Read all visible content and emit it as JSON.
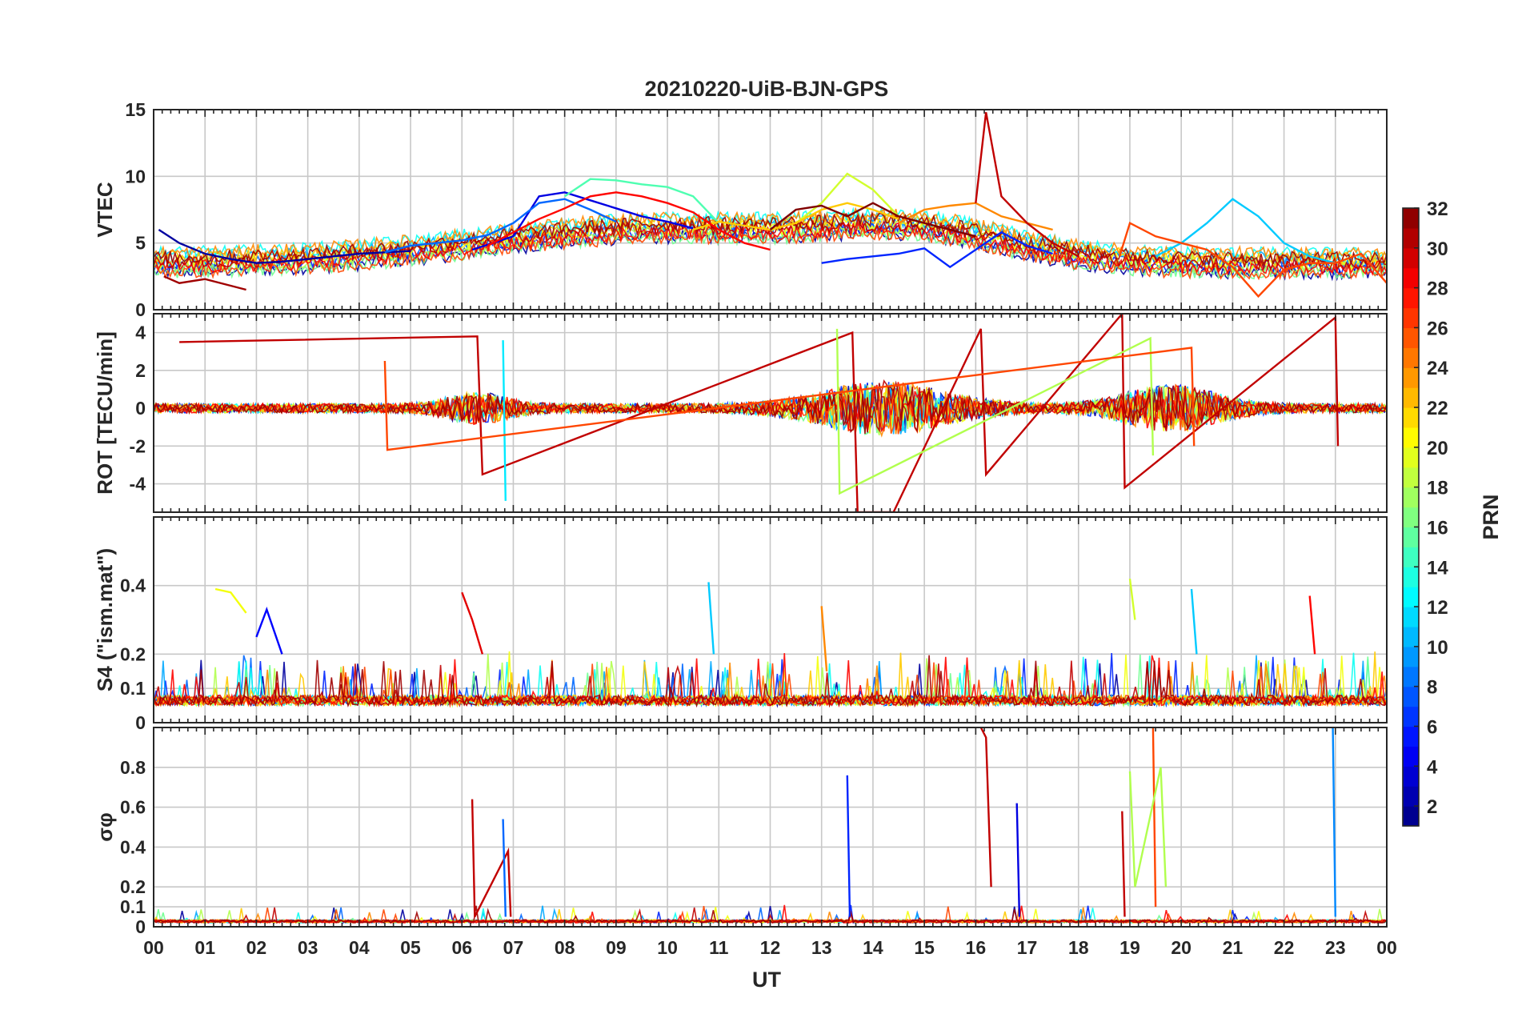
{
  "figure": {
    "title": "20210220-UiB-BJN-GPS",
    "xlabel": "UT"
  },
  "chart_data": {
    "type": "line",
    "title": "20210220-UiB-BJN-GPS",
    "xlabel": "UT",
    "x_unit": "hour",
    "xlim": [
      0,
      24
    ],
    "x_ticks": [
      0,
      1,
      2,
      3,
      4,
      5,
      6,
      7,
      8,
      9,
      10,
      11,
      12,
      13,
      14,
      15,
      16,
      17,
      18,
      19,
      20,
      21,
      22,
      23,
      24
    ],
    "x_tick_labels": [
      "00",
      "01",
      "02",
      "03",
      "04",
      "05",
      "06",
      "07",
      "08",
      "09",
      "10",
      "11",
      "12",
      "13",
      "14",
      "15",
      "16",
      "17",
      "18",
      "19",
      "20",
      "21",
      "22",
      "23",
      "00"
    ],
    "grid": true,
    "colorbar": {
      "label": "PRN",
      "colormap": "jet",
      "range": [
        1,
        32
      ],
      "ticks": [
        2,
        4,
        6,
        8,
        10,
        12,
        14,
        16,
        18,
        20,
        22,
        24,
        26,
        28,
        30,
        32
      ],
      "tick_labels": [
        "2",
        "4",
        "6",
        "8",
        "10",
        "12",
        "14",
        "16",
        "18",
        "20",
        "22",
        "24",
        "26",
        "28",
        "30",
        "32"
      ]
    },
    "panels": [
      {
        "id": "vtec",
        "ylabel": "VTEC",
        "ylim": [
          0,
          15
        ],
        "y_ticks": [
          0,
          5,
          10,
          15
        ],
        "y_tick_labels": [
          "0",
          "5",
          "10",
          "15"
        ],
        "series": [
          {
            "prn": 2,
            "x": [
              0.1,
              0.5,
              1.0,
              1.5,
              2.0,
              2.5,
              3.0,
              3.5,
              4.0,
              4.5,
              5.0
            ],
            "y": [
              6.0,
              5.0,
              4.2,
              3.8,
              3.5,
              3.6,
              3.8,
              4.0,
              4.2,
              4.3,
              4.4
            ]
          },
          {
            "prn": 4,
            "x": [
              6.2,
              7.0,
              7.5,
              8.0,
              8.5,
              9.0,
              9.5,
              10.0,
              10.5
            ],
            "y": [
              4.5,
              5.5,
              8.5,
              8.8,
              8.2,
              7.6,
              7.0,
              6.6,
              6.1
            ]
          },
          {
            "prn": 6,
            "x": [
              13.0,
              13.5,
              14.0,
              14.5,
              15.0,
              15.5,
              16.0,
              16.5,
              17.0,
              17.5
            ],
            "y": [
              3.5,
              3.8,
              4.0,
              4.2,
              4.6,
              3.2,
              4.5,
              5.8,
              4.8,
              4.2
            ]
          },
          {
            "prn": 8,
            "x": [
              4.5,
              5.0,
              5.5,
              6.0,
              6.5,
              7.0,
              7.5,
              8.0,
              8.5,
              9.0
            ],
            "y": [
              4.3,
              4.8,
              5.0,
              5.2,
              5.6,
              6.5,
              8.0,
              8.3,
              7.5,
              6.6
            ]
          },
          {
            "prn": 11,
            "x": [
              19.5,
              20.0,
              20.5,
              21.0,
              21.5,
              22.0,
              22.5,
              23.0
            ],
            "y": [
              4.0,
              5.0,
              6.5,
              8.3,
              7.0,
              5.0,
              4.0,
              3.5
            ]
          },
          {
            "prn": 15,
            "x": [
              8.0,
              8.5,
              9.0,
              9.5,
              10.0,
              10.5,
              11.0
            ],
            "y": [
              8.5,
              9.8,
              9.7,
              9.4,
              9.2,
              8.5,
              6.5
            ]
          },
          {
            "prn": 19,
            "x": [
              12.5,
              13.0,
              13.5,
              14.0,
              14.5
            ],
            "y": [
              6.5,
              8.0,
              10.2,
              9.0,
              7.0
            ]
          },
          {
            "prn": 22,
            "x": [
              10.5,
              11.0,
              11.5,
              12.0,
              12.5,
              13.0,
              13.5,
              14.0,
              14.5
            ],
            "y": [
              6.0,
              6.6,
              6.3,
              6.0,
              6.5,
              7.5,
              8.0,
              7.5,
              6.8
            ]
          },
          {
            "prn": 24,
            "x": [
              14.5,
              15.0,
              15.5,
              16.0,
              16.5,
              17.0,
              17.5
            ],
            "y": [
              6.5,
              7.5,
              7.8,
              8.0,
              7.0,
              6.5,
              6.0
            ]
          },
          {
            "prn": 26,
            "x": [
              18.8,
              19.0,
              19.5,
              20.0,
              20.5,
              21.0,
              21.5,
              22.0,
              22.5,
              23.0,
              23.5,
              24.0
            ],
            "y": [
              4.0,
              6.5,
              5.5,
              5.0,
              4.5,
              3.2,
              1.0,
              3.0,
              3.5,
              3.5,
              4.2,
              2.0
            ]
          },
          {
            "prn": 28,
            "x": [
              6.5,
              7.0,
              7.5,
              8.0,
              8.5,
              9.0,
              9.5,
              10.0,
              10.5,
              11.0,
              11.5,
              12.0
            ],
            "y": [
              4.8,
              5.8,
              6.8,
              7.6,
              8.5,
              8.8,
              8.5,
              8.0,
              7.3,
              6.0,
              5.0,
              4.5
            ]
          },
          {
            "prn": 30,
            "x": [
              16.0,
              16.2,
              16.5,
              17.0,
              17.5,
              18.0
            ],
            "y": [
              8.0,
              14.8,
              8.5,
              6.5,
              5.0,
              4.0
            ]
          },
          {
            "prn": 31,
            "x": [
              0.2,
              0.5,
              1.0,
              1.5,
              1.8
            ],
            "y": [
              2.5,
              2.0,
              2.3,
              1.8,
              1.5
            ]
          },
          {
            "prn": 32,
            "x": [
              12.0,
              12.5,
              13.0,
              13.5,
              14.0,
              14.5,
              15.0,
              15.5,
              16.0
            ],
            "y": [
              6.0,
              7.5,
              7.8,
              7.0,
              8.0,
              7.0,
              6.5,
              6.0,
              5.5
            ]
          }
        ]
      },
      {
        "id": "rot",
        "ylabel": "ROT [TECU/min]",
        "ylim": [
          -5.5,
          5
        ],
        "y_ticks": [
          -4,
          -2,
          0,
          2,
          4
        ],
        "y_tick_labels": [
          "-4",
          "-2",
          "0",
          "2",
          "4"
        ],
        "series": [
          {
            "prn": 30,
            "x": [
              0.5,
              6.3,
              6.4,
              13.6,
              13.7,
              14.4,
              16.1,
              16.2,
              18.85,
              18.9,
              23.0,
              23.05
            ],
            "y": [
              3.5,
              3.8,
              -3.5,
              4.0,
              -5.5,
              -5.5,
              4.2,
              -3.5,
              5.0,
              -4.2,
              4.8,
              -2.0
            ]
          },
          {
            "prn": 12,
            "x": [
              6.8,
              6.85
            ],
            "y": [
              3.6,
              -4.9
            ]
          },
          {
            "prn": 18,
            "x": [
              13.3,
              13.35,
              19.4,
              19.45
            ],
            "y": [
              4.2,
              -4.5,
              3.7,
              -2.5
            ]
          },
          {
            "prn": 26,
            "x": [
              4.5,
              4.55,
              20.2,
              20.25
            ],
            "y": [
              2.5,
              -2.2,
              3.2,
              -2.0
            ]
          }
        ]
      },
      {
        "id": "s4",
        "ylabel": "S4 (\"ism.mat\")",
        "ylim": [
          0,
          0.6
        ],
        "y_ticks": [
          0,
          0.1,
          0.2,
          0.4
        ],
        "y_tick_labels": [
          "0",
          "0.1",
          "0.2",
          "0.4"
        ],
        "series": [
          {
            "prn": 20,
            "x": [
              1.2,
              1.5,
              1.8
            ],
            "y": [
              0.39,
              0.38,
              0.32
            ]
          },
          {
            "prn": 5,
            "x": [
              2.0,
              2.2,
              2.5
            ],
            "y": [
              0.25,
              0.33,
              0.2
            ]
          },
          {
            "prn": 29,
            "x": [
              6.0,
              6.2,
              6.4
            ],
            "y": [
              0.38,
              0.3,
              0.2
            ]
          },
          {
            "prn": 11,
            "x": [
              10.8,
              10.9
            ],
            "y": [
              0.41,
              0.2
            ]
          },
          {
            "prn": 24,
            "x": [
              13.0,
              13.1
            ],
            "y": [
              0.34,
              0.15
            ]
          },
          {
            "prn": 19,
            "x": [
              19.0,
              19.1
            ],
            "y": [
              0.42,
              0.3
            ]
          },
          {
            "prn": 11,
            "x": [
              20.2,
              20.3
            ],
            "y": [
              0.39,
              0.2
            ]
          },
          {
            "prn": 28,
            "x": [
              22.5,
              22.6
            ],
            "y": [
              0.37,
              0.2
            ]
          }
        ]
      },
      {
        "id": "sigma_phi",
        "ylabel": "σφ",
        "ylim": [
          0,
          1.0
        ],
        "y_ticks": [
          0,
          0.1,
          0.2,
          0.4,
          0.6,
          0.8
        ],
        "y_tick_labels": [
          "0",
          "0.1",
          "0.2",
          "0.4",
          "0.6",
          "0.8"
        ],
        "series": [
          {
            "prn": 30,
            "x": [
              6.2,
              6.25,
              6.9,
              6.95
            ],
            "y": [
              0.64,
              0.05,
              0.38,
              0.05
            ]
          },
          {
            "prn": 8,
            "x": [
              6.8,
              6.85
            ],
            "y": [
              0.54,
              0.05
            ]
          },
          {
            "prn": 6,
            "x": [
              13.5,
              13.55
            ],
            "y": [
              0.76,
              0.05
            ]
          },
          {
            "prn": 30,
            "x": [
              16.1,
              16.2,
              16.3
            ],
            "y": [
              1.0,
              0.95,
              0.2
            ]
          },
          {
            "prn": 4,
            "x": [
              16.8,
              16.85
            ],
            "y": [
              0.62,
              0.05
            ]
          },
          {
            "prn": 30,
            "x": [
              18.85,
              18.9
            ],
            "y": [
              0.58,
              0.05
            ]
          },
          {
            "prn": 26,
            "x": [
              19.45,
              19.5
            ],
            "y": [
              1.0,
              0.1
            ]
          },
          {
            "prn": 18,
            "x": [
              19.0,
              19.1,
              19.6,
              19.7
            ],
            "y": [
              0.78,
              0.2,
              0.8,
              0.2
            ]
          },
          {
            "prn": 9,
            "x": [
              22.95,
              23.0
            ],
            "y": [
              1.0,
              0.05
            ]
          }
        ]
      }
    ]
  }
}
